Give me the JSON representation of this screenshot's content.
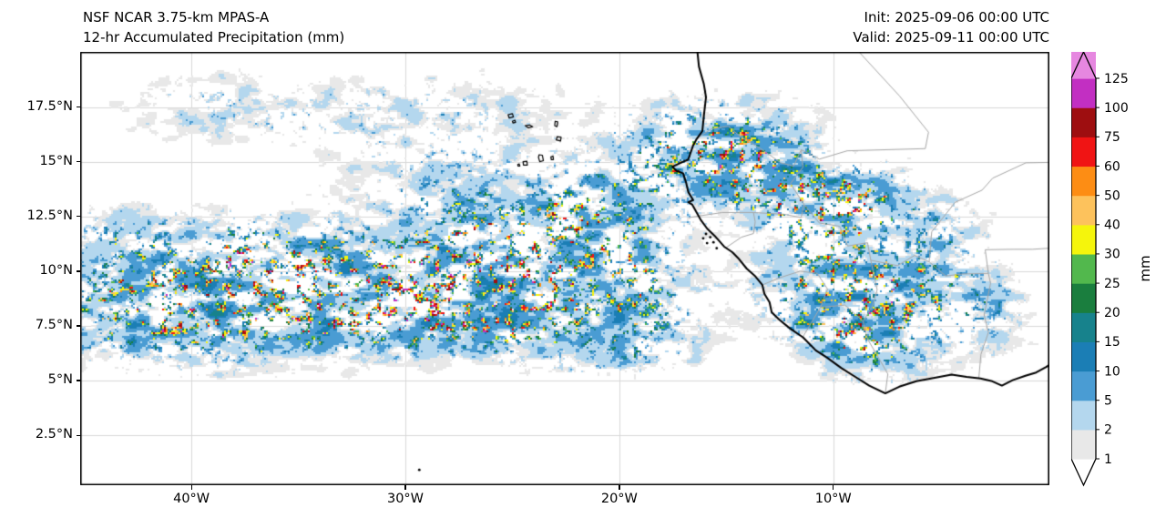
{
  "header": {
    "title_line1": "NSF NCAR 3.75-km MPAS-A",
    "title_line2": "12-hr Accumulated Precipitation (mm)",
    "init_label": "Init: 2025-09-06 00:00 UTC",
    "valid_label": "Valid: 2025-09-11 00:00 UTC"
  },
  "chart_data": {
    "type": "heatmap",
    "title": "NSF NCAR 3.75-km MPAS-A 12-hr Accumulated Precipitation (mm)",
    "units": "mm",
    "lon_range": [
      -45.2,
      0.1
    ],
    "lat_range": [
      0.22,
      20.02
    ],
    "x_ticks": [
      {
        "lon": -40,
        "label": "40°W"
      },
      {
        "lon": -30,
        "label": "30°W"
      },
      {
        "lon": -20,
        "label": "20°W"
      },
      {
        "lon": -10,
        "label": "10°W"
      }
    ],
    "y_ticks": [
      {
        "lat": 2.5,
        "label": "2.5°N"
      },
      {
        "lat": 5,
        "label": "5°N"
      },
      {
        "lat": 7.5,
        "label": "7.5°N"
      },
      {
        "lat": 10,
        "label": "10°N"
      },
      {
        "lat": 12.5,
        "label": "12.5°N"
      },
      {
        "lat": 15,
        "label": "15°N"
      },
      {
        "lat": 17.5,
        "label": "17.5°N"
      }
    ],
    "grid_color": "#d8d8d8",
    "coast_color": "#000000",
    "border_color": "#a6a6a6",
    "colorbar": {
      "label": "mm",
      "levels": [
        1,
        2,
        5,
        10,
        15,
        20,
        25,
        30,
        40,
        50,
        60,
        75,
        100,
        125
      ],
      "extend": "both",
      "colors": {
        "under": "#ffffff",
        "segments": [
          "#e8e8e8",
          "#b4d7ee",
          "#4a9cd3",
          "#1b7eb5",
          "#17828c",
          "#1a7e3e",
          "#52b84d",
          "#f5f50c",
          "#fdc25c",
          "#fd8d14",
          "#f01414",
          "#9e0e10",
          "#c22fc2",
          "#e687e0"
        ],
        "over": "#f7e3f7"
      }
    },
    "noise": {
      "seed": 7
    },
    "storm_regions": [
      {
        "lon": -40.5,
        "lat": 8.1,
        "sx": 4.2,
        "sy": 1.5,
        "amp": 1.05
      },
      {
        "lon": -37.3,
        "lat": 10.6,
        "sx": 2.6,
        "sy": 1.3,
        "amp": 0.85
      },
      {
        "lon": -33.0,
        "lat": 8.4,
        "sx": 3.2,
        "sy": 1.3,
        "amp": 0.95
      },
      {
        "lon": -28.5,
        "lat": 10.1,
        "sx": 3.8,
        "sy": 1.7,
        "amp": 1.05
      },
      {
        "lon": -24.0,
        "lat": 10.4,
        "sx": 2.8,
        "sy": 1.5,
        "amp": 0.95
      },
      {
        "lon": -21.3,
        "lat": 12.4,
        "sx": 2.0,
        "sy": 1.4,
        "amp": 0.85
      },
      {
        "lon": -26.0,
        "lat": 7.7,
        "sx": 3.2,
        "sy": 1.1,
        "amp": 0.7
      },
      {
        "lon": -15.5,
        "lat": 15.4,
        "sx": 2.9,
        "sy": 1.5,
        "amp": 1.1
      },
      {
        "lon": -10.5,
        "lat": 12.9,
        "sx": 1.7,
        "sy": 1.2,
        "amp": 1.0
      },
      {
        "lon": -10.0,
        "lat": 9.5,
        "sx": 2.4,
        "sy": 1.8,
        "amp": 0.85
      },
      {
        "lon": -9.2,
        "lat": 8.0,
        "sx": 1.5,
        "sy": 1.2,
        "amp": 0.8
      },
      {
        "lon": -7.6,
        "lat": 7.0,
        "sx": 1.8,
        "sy": 1.4,
        "amp": 0.6
      },
      {
        "lon": -29.0,
        "lat": 17.0,
        "sx": 4.5,
        "sy": 1.4,
        "amp": 0.34
      },
      {
        "lon": -38.5,
        "lat": 17.4,
        "sx": 3.2,
        "sy": 1.2,
        "amp": 0.3
      },
      {
        "lon": -43.5,
        "lat": 11.0,
        "sx": 2.0,
        "sy": 1.3,
        "amp": 0.6
      },
      {
        "lon": -27.5,
        "lat": 13.8,
        "sx": 2.5,
        "sy": 1.2,
        "amp": 0.45
      },
      {
        "lon": -18.6,
        "lat": 9.2,
        "sx": 1.8,
        "sy": 2.0,
        "amp": 0.5
      },
      {
        "lon": -20.3,
        "lat": 6.8,
        "sx": 2.6,
        "sy": 1.3,
        "amp": 0.4
      },
      {
        "lon": -5.3,
        "lat": 9.5,
        "sx": 2.0,
        "sy": 1.4,
        "amp": 0.5
      },
      {
        "lon": -2.8,
        "lat": 7.8,
        "sx": 1.6,
        "sy": 1.4,
        "amp": 0.35
      },
      {
        "lon": -13.0,
        "lat": 14.2,
        "sx": 1.4,
        "sy": 1.0,
        "amp": 0.7
      },
      {
        "lon": -8.0,
        "lat": 13.6,
        "sx": 1.3,
        "sy": 0.9,
        "amp": 0.6
      },
      {
        "lon": -5.0,
        "lat": 12.2,
        "sx": 1.5,
        "sy": 1.0,
        "amp": 0.38
      }
    ],
    "geo": {
      "coastline": [
        [
          -16.35,
          20.02
        ],
        [
          -16.28,
          19.35
        ],
        [
          -16.05,
          18.55
        ],
        [
          -15.95,
          17.95
        ],
        [
          -16.05,
          17.1
        ],
        [
          -16.12,
          16.4
        ],
        [
          -16.4,
          16.02
        ],
        [
          -16.55,
          15.75
        ],
        [
          -16.78,
          15.1
        ],
        [
          -17.2,
          14.92
        ],
        [
          -17.52,
          14.77
        ],
        [
          -17.32,
          14.58
        ],
        [
          -17.02,
          14.47
        ],
        [
          -16.88,
          14.05
        ],
        [
          -16.78,
          13.62
        ],
        [
          -16.55,
          13.25
        ],
        [
          -16.78,
          13.15
        ],
        [
          -16.6,
          13.05
        ],
        [
          -16.35,
          12.62
        ],
        [
          -16.2,
          12.35
        ],
        [
          -15.9,
          11.95
        ],
        [
          -15.55,
          11.62
        ],
        [
          -15.1,
          11.12
        ],
        [
          -14.72,
          10.87
        ],
        [
          -14.45,
          10.6
        ],
        [
          -14.05,
          10.12
        ],
        [
          -13.68,
          9.8
        ],
        [
          -13.32,
          9.38
        ],
        [
          -13.22,
          8.97
        ],
        [
          -12.98,
          8.58
        ],
        [
          -12.88,
          8.12
        ],
        [
          -12.52,
          7.78
        ],
        [
          -12.02,
          7.38
        ],
        [
          -11.42,
          6.98
        ],
        [
          -10.82,
          6.38
        ],
        [
          -10.32,
          6.07
        ],
        [
          -9.62,
          5.57
        ],
        [
          -9.02,
          5.2
        ],
        [
          -8.32,
          4.77
        ],
        [
          -7.57,
          4.42
        ],
        [
          -6.92,
          4.72
        ],
        [
          -6.12,
          4.97
        ],
        [
          -5.32,
          5.12
        ],
        [
          -4.47,
          5.27
        ],
        [
          -3.77,
          5.17
        ],
        [
          -3.12,
          5.1
        ],
        [
          -2.57,
          4.97
        ],
        [
          -2.12,
          4.77
        ],
        [
          -1.62,
          5.02
        ],
        [
          -1.02,
          5.22
        ],
        [
          -0.52,
          5.37
        ],
        [
          -0.05,
          5.62
        ],
        [
          0.1,
          5.72
        ]
      ],
      "borders": [
        [
          [
            -16.4,
            16.05
          ],
          [
            -15.7,
            16.5
          ],
          [
            -14.9,
            16.62
          ],
          [
            -14.35,
            16.15
          ],
          [
            -13.4,
            15.6
          ],
          [
            -12.45,
            14.95
          ],
          [
            -11.85,
            14.8
          ],
          [
            -11.5,
            15.55
          ]
        ],
        [
          [
            -8.8,
            20.02
          ],
          [
            -6.9,
            18.0
          ],
          [
            -5.55,
            16.35
          ],
          [
            -5.7,
            15.6
          ],
          [
            -9.35,
            15.5
          ],
          [
            -10.65,
            15.12
          ],
          [
            -11.5,
            15.55
          ]
        ],
        [
          [
            -11.5,
            15.55
          ],
          [
            -11.42,
            14.75
          ],
          [
            -12.0,
            14.0
          ],
          [
            -11.37,
            13.05
          ],
          [
            -11.5,
            12.45
          ],
          [
            -12.3,
            12.6
          ],
          [
            -13.73,
            12.68
          ],
          [
            -15.2,
            12.68
          ],
          [
            -16.75,
            12.45
          ]
        ],
        [
          [
            -13.73,
            12.68
          ],
          [
            -13.65,
            12.25
          ],
          [
            -13.73,
            11.72
          ],
          [
            -14.3,
            11.55
          ],
          [
            -15.05,
            11.05
          ]
        ],
        [
          [
            -11.37,
            13.05
          ],
          [
            -10.65,
            12.2
          ],
          [
            -9.7,
            12.05
          ],
          [
            -9.33,
            11.15
          ],
          [
            -8.4,
            11.3
          ],
          [
            -8.25,
            10.5
          ],
          [
            -7.95,
            9.15
          ],
          [
            -8.15,
            8.45
          ],
          [
            -8.6,
            7.7
          ],
          [
            -8.4,
            6.9
          ],
          [
            -7.8,
            5.9
          ],
          [
            -7.45,
            5.3
          ],
          [
            -7.57,
            4.42
          ]
        ],
        [
          [
            -13.25,
            9.4
          ],
          [
            -12.5,
            9.7
          ],
          [
            -11.55,
            10.0
          ],
          [
            -10.75,
            9.9
          ],
          [
            -10.27,
            9.18
          ],
          [
            -10.6,
            8.35
          ],
          [
            -11.45,
            6.95
          ]
        ],
        [
          [
            -10.6,
            8.35
          ],
          [
            -9.45,
            8.45
          ],
          [
            -8.6,
            7.7
          ]
        ],
        [
          [
            -3.2,
            5.1
          ],
          [
            -3.1,
            6.2
          ],
          [
            -2.75,
            7.2
          ],
          [
            -2.95,
            8.0
          ],
          [
            -2.65,
            9.45
          ],
          [
            -2.75,
            9.9
          ],
          [
            -2.9,
            10.98
          ]
        ],
        [
          [
            -5.52,
            10.43
          ],
          [
            -4.75,
            9.78
          ],
          [
            -3.97,
            9.87
          ],
          [
            -2.75,
            9.9
          ]
        ],
        [
          [
            -2.9,
            10.98
          ],
          [
            -1.6,
            11.0
          ],
          [
            -0.7,
            11.0
          ],
          [
            0.1,
            11.05
          ]
        ],
        [
          [
            -4.3,
            13.15
          ],
          [
            -3.05,
            13.7
          ],
          [
            -2.55,
            14.25
          ],
          [
            -1.0,
            14.95
          ],
          [
            0.1,
            14.97
          ]
        ],
        [
          [
            -5.52,
            10.43
          ],
          [
            -6.2,
            10.72
          ],
          [
            -7.0,
            10.25
          ],
          [
            -8.25,
            10.5
          ]
        ],
        [
          [
            -5.52,
            10.43
          ],
          [
            -5.4,
            11.8
          ],
          [
            -4.3,
            13.15
          ]
        ]
      ],
      "island_outlines": [
        [
          [
            -25.2,
            17.15
          ],
          [
            -25.0,
            17.2
          ],
          [
            -24.95,
            17.05
          ],
          [
            -25.15,
            17.0
          ]
        ],
        [
          [
            -25.0,
            16.85
          ],
          [
            -24.88,
            16.9
          ],
          [
            -24.85,
            16.8
          ],
          [
            -24.97,
            16.77
          ]
        ],
        [
          [
            -24.4,
            16.65
          ],
          [
            -24.2,
            16.68
          ],
          [
            -24.05,
            16.6
          ],
          [
            -24.25,
            16.55
          ]
        ],
        [
          [
            -23.0,
            16.85
          ],
          [
            -22.88,
            16.82
          ],
          [
            -22.92,
            16.6
          ],
          [
            -23.02,
            16.65
          ]
        ],
        [
          [
            -22.9,
            16.15
          ],
          [
            -22.72,
            16.12
          ],
          [
            -22.75,
            15.95
          ],
          [
            -22.95,
            16.0
          ]
        ],
        [
          [
            -23.2,
            15.22
          ],
          [
            -23.1,
            15.26
          ],
          [
            -23.08,
            15.1
          ],
          [
            -23.18,
            15.1
          ]
        ],
        [
          [
            -23.75,
            15.32
          ],
          [
            -23.6,
            15.3
          ],
          [
            -23.55,
            15.05
          ],
          [
            -23.72,
            15.0
          ],
          [
            -23.78,
            15.2
          ]
        ],
        [
          [
            -24.5,
            15.0
          ],
          [
            -24.32,
            15.02
          ],
          [
            -24.3,
            14.85
          ],
          [
            -24.48,
            14.85
          ]
        ],
        [
          [
            -24.75,
            14.87
          ],
          [
            -24.68,
            14.9
          ],
          [
            -24.65,
            14.8
          ],
          [
            -24.73,
            14.8
          ]
        ]
      ],
      "island_dots": [
        [
          -15.95,
          11.7
        ],
        [
          -15.75,
          11.55
        ],
        [
          -15.6,
          11.32
        ],
        [
          -15.9,
          11.28
        ],
        [
          -16.08,
          11.5
        ],
        [
          -15.45,
          11.05
        ],
        [
          -29.35,
          0.92
        ]
      ]
    }
  }
}
